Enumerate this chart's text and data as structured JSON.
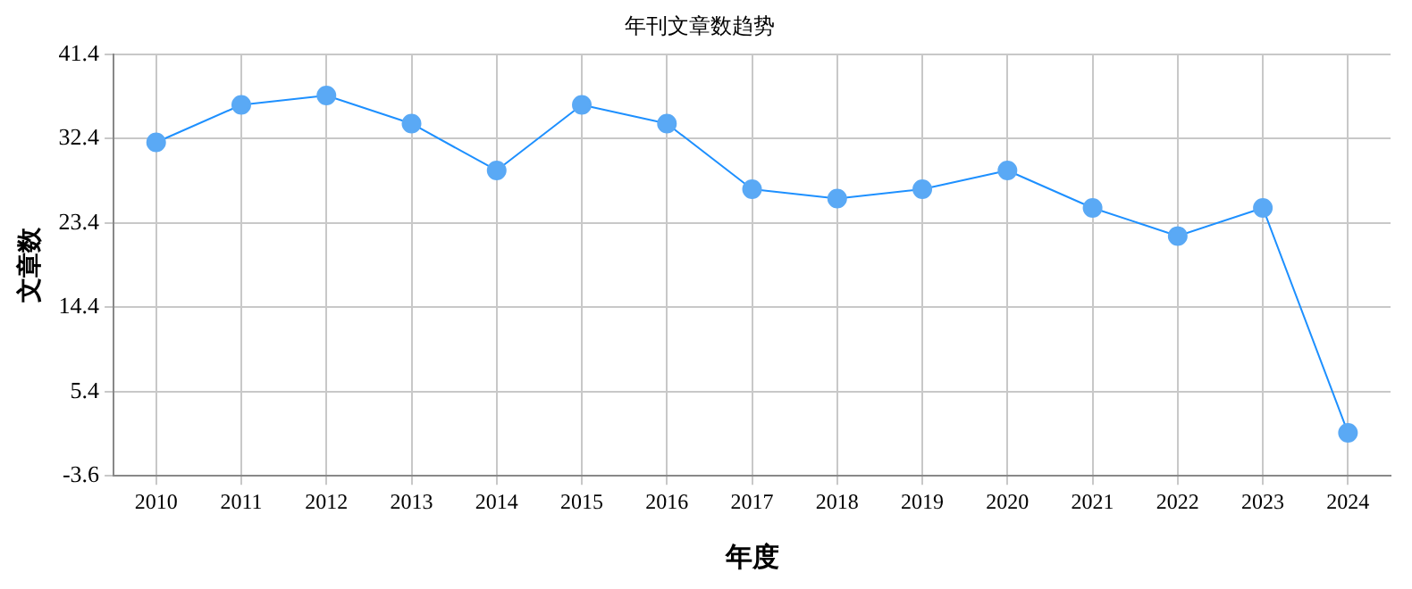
{
  "chart_data": {
    "type": "line",
    "title": "年刊文章数趋势",
    "xlabel": "年度",
    "ylabel": "文章数",
    "categories": [
      "2010",
      "2011",
      "2012",
      "2013",
      "2014",
      "2015",
      "2016",
      "2017",
      "2018",
      "2019",
      "2020",
      "2021",
      "2022",
      "2023",
      "2024"
    ],
    "series": [
      {
        "color": "#1e90ff",
        "values": [
          32,
          36,
          37,
          34,
          29,
          36,
          34,
          27,
          26,
          27,
          29,
          25,
          22,
          25,
          1
        ]
      }
    ],
    "ylim": [
      -3.6,
      41.4
    ],
    "yticks": [
      -3.6,
      5.4,
      14.4,
      23.4,
      32.4,
      41.4
    ],
    "grid": true,
    "legend": false,
    "marker": "circle",
    "line_style": "solid"
  }
}
